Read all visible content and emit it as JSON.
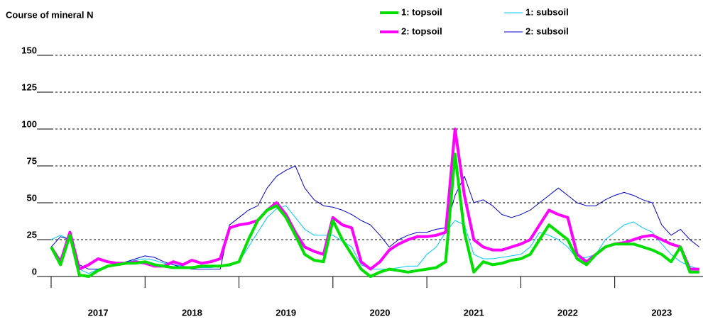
{
  "chart_data": {
    "type": "line",
    "title": "Course of mineral N",
    "x": [
      2017.0,
      2017.1,
      2017.2,
      2017.3,
      2017.4,
      2017.5,
      2017.6,
      2017.7,
      2017.8,
      2017.9,
      2018.0,
      2018.1,
      2018.2,
      2018.3,
      2018.4,
      2018.5,
      2018.6,
      2018.7,
      2018.8,
      2018.9,
      2019.0,
      2019.1,
      2019.2,
      2019.3,
      2019.4,
      2019.5,
      2019.6,
      2019.7,
      2019.8,
      2019.9,
      2020.0,
      2020.1,
      2020.2,
      2020.3,
      2020.4,
      2020.5,
      2020.6,
      2020.7,
      2020.8,
      2020.9,
      2021.0,
      2021.1,
      2021.2,
      2021.3,
      2021.4,
      2021.5,
      2021.6,
      2021.7,
      2021.8,
      2021.9,
      2022.0,
      2022.1,
      2022.2,
      2022.3,
      2022.4,
      2022.5,
      2022.6,
      2022.7,
      2022.8,
      2022.9,
      2023.0,
      2023.1,
      2023.2,
      2023.3,
      2023.4,
      2023.5,
      2023.6,
      2023.7,
      2023.8,
      2023.9
    ],
    "series": [
      {
        "name": "1: topsoil",
        "color": "#00e000",
        "width": 4,
        "values": [
          20,
          8,
          28,
          1,
          0,
          4,
          7,
          8,
          9,
          9,
          10,
          8,
          7,
          6,
          6,
          6,
          7,
          7,
          7,
          8,
          10,
          25,
          38,
          45,
          48,
          40,
          28,
          15,
          11,
          10,
          38,
          25,
          15,
          5,
          0,
          3,
          5,
          4,
          3,
          4,
          5,
          6,
          10,
          83,
          30,
          3,
          10,
          8,
          9,
          11,
          12,
          15,
          25,
          35,
          30,
          25,
          12,
          8,
          15,
          20,
          22,
          22,
          22,
          20,
          18,
          15,
          10,
          20,
          3,
          3
        ]
      },
      {
        "name": "2: topsoil",
        "color": "#ff00ff",
        "width": 4,
        "values": [
          20,
          10,
          30,
          5,
          8,
          12,
          10,
          9,
          9,
          10,
          9,
          7,
          7,
          10,
          8,
          11,
          9,
          10,
          12,
          33,
          35,
          36,
          38,
          45,
          50,
          42,
          30,
          20,
          17,
          15,
          40,
          35,
          33,
          10,
          5,
          10,
          18,
          22,
          25,
          27,
          27,
          28,
          30,
          100,
          55,
          25,
          20,
          18,
          18,
          20,
          22,
          25,
          35,
          45,
          42,
          40,
          15,
          10,
          15,
          20,
          22,
          23,
          25,
          27,
          28,
          25,
          22,
          20,
          5,
          5
        ]
      },
      {
        "name": "1: subsoil",
        "color": "#00c8ff",
        "width": 1,
        "values": [
          25,
          28,
          25,
          5,
          2,
          5,
          7,
          8,
          10,
          11,
          12,
          11,
          9,
          8,
          7,
          6,
          6,
          6,
          7,
          7,
          10,
          20,
          30,
          40,
          46,
          48,
          40,
          32,
          28,
          28,
          28,
          24,
          20,
          8,
          5,
          5,
          5,
          6,
          7,
          7,
          15,
          20,
          30,
          38,
          35,
          15,
          12,
          12,
          13,
          14,
          15,
          20,
          30,
          28,
          25,
          20,
          12,
          13,
          15,
          25,
          30,
          35,
          37,
          33,
          30,
          22,
          15,
          10,
          7,
          5
        ]
      },
      {
        "name": "2: subsoil",
        "color": "#0000cc",
        "width": 1,
        "values": [
          20,
          27,
          25,
          8,
          5,
          5,
          7,
          8,
          10,
          12,
          14,
          13,
          10,
          8,
          6,
          5,
          5,
          5,
          5,
          35,
          40,
          45,
          48,
          60,
          68,
          72,
          75,
          60,
          52,
          48,
          47,
          45,
          42,
          38,
          35,
          28,
          20,
          25,
          28,
          30,
          30,
          32,
          33,
          55,
          68,
          50,
          52,
          48,
          42,
          40,
          42,
          45,
          50,
          55,
          60,
          55,
          50,
          48,
          48,
          52,
          55,
          57,
          55,
          52,
          50,
          35,
          28,
          32,
          25,
          20
        ]
      }
    ],
    "xlim": [
      2017,
      2023.94
    ],
    "xticks": [
      2017,
      2018,
      2019,
      2020,
      2021,
      2022,
      2023
    ],
    "ylim": [
      0,
      150
    ],
    "yticks": [
      0,
      25,
      50,
      75,
      100,
      125,
      150
    ],
    "grid": true
  }
}
